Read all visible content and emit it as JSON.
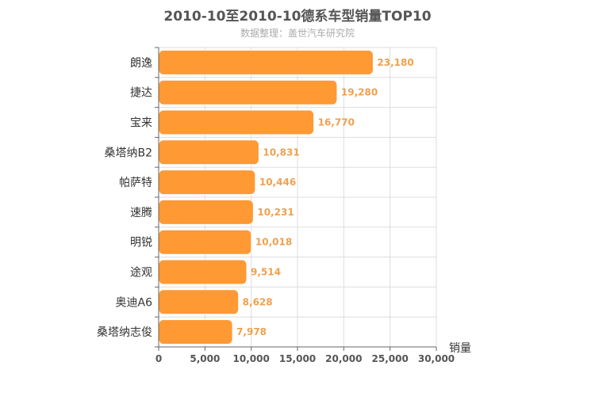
{
  "chart_data": {
    "type": "bar",
    "orientation": "horizontal",
    "title": "2010-10至2010-10德系车型销量TOP10",
    "subtitle": "数据整理：盖世汽车研究院",
    "categories": [
      "朗逸",
      "捷达",
      "宝来",
      "桑塔纳B2",
      "帕萨特",
      "速腾",
      "明锐",
      "途观",
      "奥迪A6",
      "桑塔纳志俊"
    ],
    "values": [
      23180,
      19280,
      16770,
      10831,
      10446,
      10231,
      10018,
      9514,
      8628,
      7978
    ],
    "value_labels": [
      "23,180",
      "19,280",
      "16,770",
      "10,831",
      "10,446",
      "10,231",
      "10,018",
      "9,514",
      "8,628",
      "7,978"
    ],
    "xlabel": "销量",
    "xlim": [
      0,
      30000
    ],
    "xticks": [
      0,
      5000,
      10000,
      15000,
      20000,
      25000,
      30000
    ],
    "xtick_labels": [
      "0",
      "5,000",
      "10,000",
      "15,000",
      "20,000",
      "25,000",
      "30,000"
    ],
    "grid": true,
    "bar_color": "#ff9933",
    "label_color": "#f0a050"
  }
}
